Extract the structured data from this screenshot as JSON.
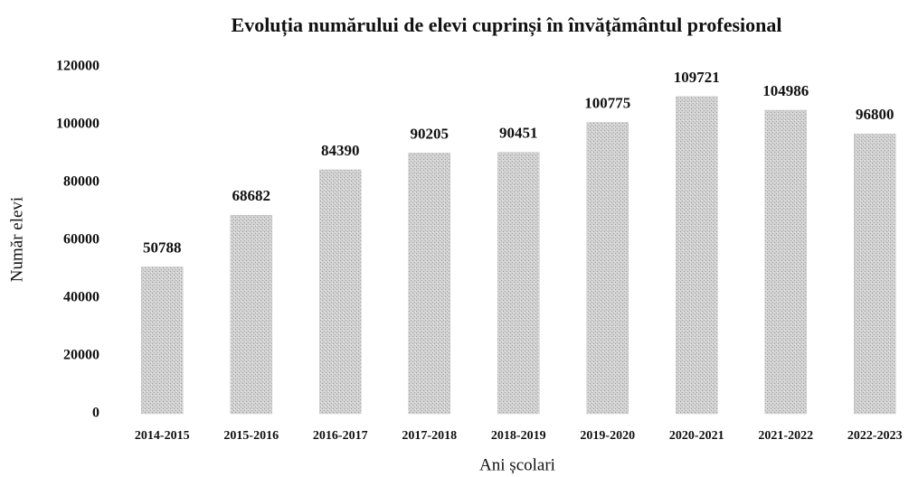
{
  "chart_data": {
    "type": "bar",
    "title": "Evoluția numărului de elevi cuprinși în învățământul profesional",
    "xlabel": "Ani școlari",
    "ylabel": "Număr elevi",
    "categories": [
      "2014-2015",
      "2015-2016",
      "2016-2017",
      "2017-2018",
      "2018-2019",
      "2019-2020",
      "2020-2021",
      "2021-2022",
      "2022-2023"
    ],
    "values": [
      50788,
      68682,
      84390,
      90205,
      90451,
      100775,
      109721,
      104986,
      96800
    ],
    "color": "#c4c4c4",
    "ylim": [
      0,
      120000
    ],
    "yticks": [
      0,
      20000,
      40000,
      60000,
      80000,
      100000,
      120000
    ],
    "grid": false
  }
}
